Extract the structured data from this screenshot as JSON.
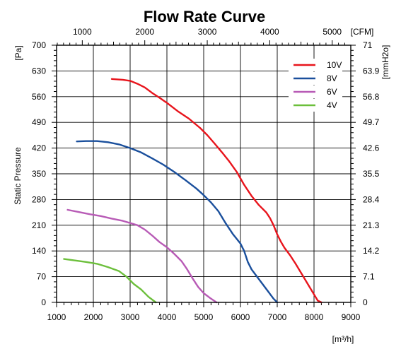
{
  "chart_data": {
    "type": "line",
    "title": "Flow Rate Curve",
    "xlabel": "[m³/h]",
    "ylabel": "Static Pressure",
    "xlim": [
      1000,
      9000
    ],
    "ylim": [
      0,
      700
    ],
    "x_ticks": [
      1000,
      2000,
      3000,
      4000,
      5000,
      6000,
      7000,
      8000,
      9000
    ],
    "y_ticks": [
      0,
      70,
      140,
      210,
      280,
      350,
      420,
      490,
      560,
      630,
      700
    ],
    "y_unit_label": "[Pa]",
    "top_axis": {
      "label": "[CFM]",
      "ticks": [
        1000,
        2000,
        3000,
        4000,
        5000
      ],
      "conversion_m3h_per_unit": 1.699
    },
    "right_axis": {
      "label": "[mmH2o]",
      "ticks": [
        "0",
        "7.1",
        "14.2",
        "21.3",
        "28.4",
        "35.5",
        "42.6",
        "49.7",
        "56.8",
        "63.9",
        "71"
      ]
    },
    "grid": true,
    "legend_position": "top-right",
    "series": [
      {
        "name": "10V",
        "color": "#e8141c",
        "points": [
          [
            2500,
            608
          ],
          [
            2800,
            606
          ],
          [
            3000,
            603
          ],
          [
            3200,
            595
          ],
          [
            3400,
            585
          ],
          [
            3600,
            570
          ],
          [
            3800,
            557
          ],
          [
            4000,
            543
          ],
          [
            4300,
            520
          ],
          [
            4600,
            500
          ],
          [
            4900,
            475
          ],
          [
            5100,
            455
          ],
          [
            5300,
            432
          ],
          [
            5500,
            408
          ],
          [
            5700,
            383
          ],
          [
            5900,
            355
          ],
          [
            6100,
            320
          ],
          [
            6300,
            290
          ],
          [
            6500,
            265
          ],
          [
            6700,
            245
          ],
          [
            6800,
            230
          ],
          [
            6900,
            210
          ],
          [
            7000,
            185
          ],
          [
            7100,
            165
          ],
          [
            7200,
            148
          ],
          [
            7350,
            128
          ],
          [
            7500,
            105
          ],
          [
            7650,
            80
          ],
          [
            7800,
            55
          ],
          [
            7950,
            30
          ],
          [
            8100,
            5
          ],
          [
            8200,
            0
          ]
        ]
      },
      {
        "name": "8V",
        "color": "#1a4f9c",
        "points": [
          [
            1550,
            438
          ],
          [
            1800,
            439
          ],
          [
            2100,
            439
          ],
          [
            2400,
            436
          ],
          [
            2700,
            430
          ],
          [
            3000,
            420
          ],
          [
            3300,
            408
          ],
          [
            3600,
            392
          ],
          [
            3900,
            375
          ],
          [
            4200,
            355
          ],
          [
            4500,
            333
          ],
          [
            4800,
            310
          ],
          [
            5000,
            292
          ],
          [
            5200,
            272
          ],
          [
            5400,
            248
          ],
          [
            5600,
            215
          ],
          [
            5800,
            185
          ],
          [
            6000,
            160
          ],
          [
            6100,
            140
          ],
          [
            6200,
            110
          ],
          [
            6300,
            90
          ],
          [
            6450,
            70
          ],
          [
            6600,
            50
          ],
          [
            6750,
            30
          ],
          [
            6900,
            10
          ],
          [
            7000,
            0
          ]
        ]
      },
      {
        "name": "6V",
        "color": "#b85bb6",
        "points": [
          [
            1300,
            252
          ],
          [
            1600,
            246
          ],
          [
            1900,
            240
          ],
          [
            2200,
            235
          ],
          [
            2500,
            228
          ],
          [
            2800,
            222
          ],
          [
            3000,
            216
          ],
          [
            3200,
            210
          ],
          [
            3400,
            198
          ],
          [
            3600,
            182
          ],
          [
            3800,
            164
          ],
          [
            4000,
            150
          ],
          [
            4200,
            132
          ],
          [
            4400,
            112
          ],
          [
            4550,
            90
          ],
          [
            4700,
            65
          ],
          [
            4850,
            42
          ],
          [
            5000,
            25
          ],
          [
            5200,
            10
          ],
          [
            5350,
            0
          ]
        ]
      },
      {
        "name": "4V",
        "color": "#6cbf3b",
        "points": [
          [
            1200,
            118
          ],
          [
            1500,
            114
          ],
          [
            1800,
            110
          ],
          [
            2100,
            105
          ],
          [
            2400,
            96
          ],
          [
            2700,
            85
          ],
          [
            2900,
            70
          ],
          [
            3100,
            50
          ],
          [
            3300,
            35
          ],
          [
            3500,
            15
          ],
          [
            3700,
            0
          ]
        ]
      }
    ]
  }
}
